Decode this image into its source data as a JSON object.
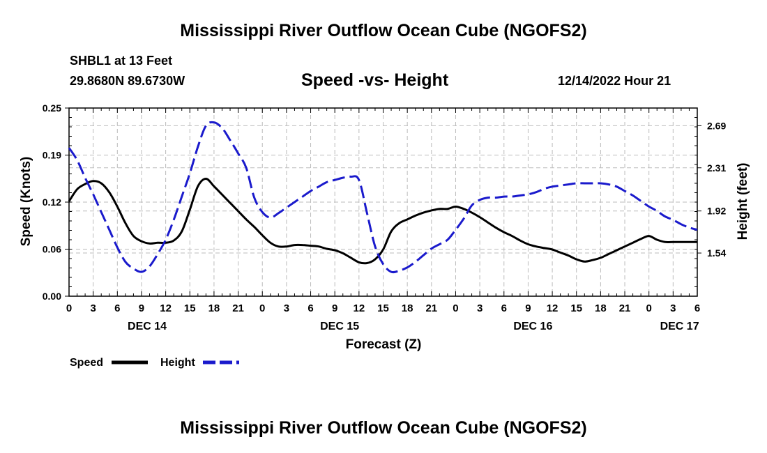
{
  "header": {
    "title": "Mississippi River Outflow Ocean Cube (NGOFS2)",
    "station": "SHBL1 at 13 Feet",
    "coords": "29.8680N  89.6730W",
    "subtitle": "Speed -vs- Height",
    "datetime": "12/14/2022 Hour 21"
  },
  "footer": {
    "title": "Mississippi River Outflow Ocean Cube (NGOFS2)"
  },
  "colors": {
    "speed": "#000000",
    "height": "#1a1acc",
    "grid": "#bbbbbb"
  },
  "chart_data": {
    "type": "line",
    "xlabel": "Forecast (Z)",
    "ylabel_left": "Speed (Knots)",
    "ylabel_right": "Height (feet)",
    "x_range": [
      0,
      78
    ],
    "x_unit": "hours since 12/14/2022 00Z",
    "x_ticks": [
      {
        "x": 0,
        "label": "0"
      },
      {
        "x": 3,
        "label": "3"
      },
      {
        "x": 6,
        "label": "6"
      },
      {
        "x": 9,
        "label": "9"
      },
      {
        "x": 12,
        "label": "12"
      },
      {
        "x": 15,
        "label": "15"
      },
      {
        "x": 18,
        "label": "18"
      },
      {
        "x": 21,
        "label": "21"
      },
      {
        "x": 24,
        "label": "0"
      },
      {
        "x": 27,
        "label": "3"
      },
      {
        "x": 30,
        "label": "6"
      },
      {
        "x": 33,
        "label": "9"
      },
      {
        "x": 36,
        "label": "12"
      },
      {
        "x": 39,
        "label": "15"
      },
      {
        "x": 42,
        "label": "18"
      },
      {
        "x": 45,
        "label": "21"
      },
      {
        "x": 48,
        "label": "0"
      },
      {
        "x": 51,
        "label": "3"
      },
      {
        "x": 54,
        "label": "6"
      },
      {
        "x": 57,
        "label": "9"
      },
      {
        "x": 60,
        "label": "12"
      },
      {
        "x": 63,
        "label": "15"
      },
      {
        "x": 66,
        "label": "18"
      },
      {
        "x": 69,
        "label": "21"
      },
      {
        "x": 72,
        "label": "0"
      },
      {
        "x": 75,
        "label": "3"
      },
      {
        "x": 78,
        "label": "6"
      }
    ],
    "date_labels": [
      {
        "x": 9.7,
        "label": "DEC 14"
      },
      {
        "x": 33.6,
        "label": "DEC 15"
      },
      {
        "x": 57.6,
        "label": "DEC 16"
      },
      {
        "x": 75.8,
        "label": "DEC 17"
      }
    ],
    "y_left": {
      "range": [
        0,
        0.25
      ],
      "ticks": [
        "0.00",
        "0.06",
        "0.12",
        "0.19",
        "0.25"
      ],
      "tick_values": [
        0,
        0.0625,
        0.125,
        0.1875,
        0.25
      ]
    },
    "y_right": {
      "range": [
        1.15,
        2.85
      ],
      "ticks": [
        "1.54",
        "1.92",
        "2.31",
        "2.69"
      ],
      "tick_values": [
        1.54,
        1.92,
        2.31,
        2.69
      ]
    },
    "series": [
      {
        "name": "Speed",
        "axis": "left",
        "x": [
          0,
          1,
          2,
          3,
          4,
          5,
          6,
          7,
          8,
          9,
          10,
          11,
          12,
          13,
          14,
          15,
          16,
          17,
          18,
          19,
          20,
          21,
          22,
          23,
          24,
          25,
          26,
          27,
          28,
          29,
          30,
          31,
          32,
          33,
          34,
          35,
          36,
          37,
          38,
          39,
          40,
          41,
          42,
          43,
          44,
          45,
          46,
          47,
          48,
          49,
          50,
          51,
          52,
          53,
          54,
          55,
          56,
          57,
          58,
          59,
          60,
          61,
          62,
          63,
          64,
          65,
          66,
          67,
          68,
          69,
          70,
          71,
          72,
          73,
          74,
          75,
          76,
          77,
          78
        ],
        "values": [
          0.126,
          0.142,
          0.149,
          0.153,
          0.15,
          0.138,
          0.119,
          0.097,
          0.08,
          0.073,
          0.07,
          0.071,
          0.071,
          0.074,
          0.086,
          0.115,
          0.146,
          0.156,
          0.146,
          0.135,
          0.124,
          0.113,
          0.102,
          0.092,
          0.081,
          0.071,
          0.066,
          0.066,
          0.068,
          0.068,
          0.067,
          0.066,
          0.063,
          0.061,
          0.057,
          0.051,
          0.045,
          0.044,
          0.049,
          0.062,
          0.086,
          0.097,
          0.102,
          0.107,
          0.111,
          0.114,
          0.116,
          0.116,
          0.119,
          0.116,
          0.111,
          0.105,
          0.098,
          0.091,
          0.085,
          0.08,
          0.074,
          0.069,
          0.066,
          0.064,
          0.062,
          0.058,
          0.054,
          0.049,
          0.046,
          0.048,
          0.051,
          0.056,
          0.061,
          0.066,
          0.071,
          0.076,
          0.08,
          0.075,
          0.072,
          0.072,
          0.072,
          0.072,
          0.072
        ]
      },
      {
        "name": "Height",
        "axis": "right",
        "x": [
          0,
          1,
          2,
          3,
          4,
          5,
          6,
          7,
          8,
          9,
          10,
          11,
          12,
          13,
          14,
          15,
          16,
          17,
          18,
          19,
          20,
          21,
          22,
          23,
          24,
          25,
          26,
          27,
          28,
          29,
          30,
          31,
          32,
          33,
          34,
          35,
          36,
          37,
          38,
          39,
          40,
          41,
          42,
          43,
          44,
          45,
          46,
          47,
          48,
          49,
          50,
          51,
          52,
          53,
          54,
          55,
          56,
          57,
          58,
          59,
          60,
          61,
          62,
          63,
          64,
          65,
          66,
          67,
          68,
          69,
          70,
          71,
          72,
          73,
          74,
          75,
          76,
          77,
          78
        ],
        "values": [
          2.49,
          2.38,
          2.22,
          2.07,
          1.91,
          1.75,
          1.59,
          1.46,
          1.4,
          1.37,
          1.42,
          1.53,
          1.66,
          1.84,
          2.05,
          2.26,
          2.5,
          2.69,
          2.72,
          2.67,
          2.56,
          2.44,
          2.31,
          2.04,
          1.91,
          1.86,
          1.9,
          1.95,
          2.0,
          2.05,
          2.1,
          2.14,
          2.18,
          2.2,
          2.22,
          2.23,
          2.2,
          1.9,
          1.6,
          1.44,
          1.37,
          1.38,
          1.41,
          1.46,
          1.52,
          1.58,
          1.62,
          1.66,
          1.75,
          1.85,
          1.97,
          2.02,
          2.04,
          2.04,
          2.05,
          2.05,
          2.06,
          2.07,
          2.09,
          2.12,
          2.14,
          2.15,
          2.16,
          2.17,
          2.17,
          2.17,
          2.17,
          2.16,
          2.14,
          2.1,
          2.06,
          2.01,
          1.96,
          1.92,
          1.87,
          1.84,
          1.8,
          1.77,
          1.75
        ]
      }
    ],
    "legend": [
      {
        "name": "Speed",
        "style": "solid"
      },
      {
        "name": "Height",
        "style": "dashed"
      }
    ]
  }
}
